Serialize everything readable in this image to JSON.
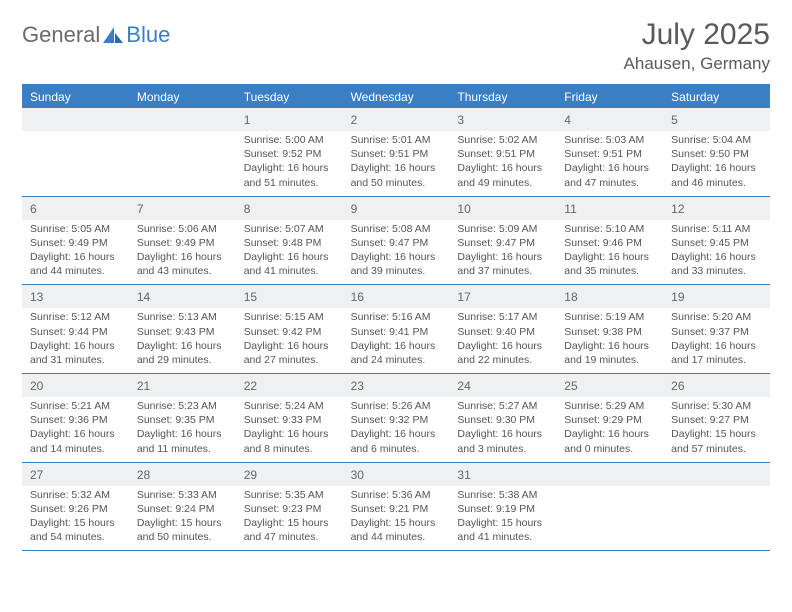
{
  "logo": {
    "text1": "General",
    "text2": "Blue"
  },
  "title": "July 2025",
  "location": "Ahausen, Germany",
  "weekdays": [
    "Sunday",
    "Monday",
    "Tuesday",
    "Wednesday",
    "Thursday",
    "Friday",
    "Saturday"
  ],
  "colors": {
    "accent": "#3a7fc4",
    "header_bg": "#3a7fc4",
    "daynum_bg": "#eef0f1",
    "text": "#555",
    "title_text": "#5a5a5a"
  },
  "calendar": {
    "start_weekday_index": 2,
    "days": [
      {
        "n": 1,
        "sunrise": "5:00 AM",
        "sunset": "9:52 PM",
        "daylight": "16 hours and 51 minutes."
      },
      {
        "n": 2,
        "sunrise": "5:01 AM",
        "sunset": "9:51 PM",
        "daylight": "16 hours and 50 minutes."
      },
      {
        "n": 3,
        "sunrise": "5:02 AM",
        "sunset": "9:51 PM",
        "daylight": "16 hours and 49 minutes."
      },
      {
        "n": 4,
        "sunrise": "5:03 AM",
        "sunset": "9:51 PM",
        "daylight": "16 hours and 47 minutes."
      },
      {
        "n": 5,
        "sunrise": "5:04 AM",
        "sunset": "9:50 PM",
        "daylight": "16 hours and 46 minutes."
      },
      {
        "n": 6,
        "sunrise": "5:05 AM",
        "sunset": "9:49 PM",
        "daylight": "16 hours and 44 minutes."
      },
      {
        "n": 7,
        "sunrise": "5:06 AM",
        "sunset": "9:49 PM",
        "daylight": "16 hours and 43 minutes."
      },
      {
        "n": 8,
        "sunrise": "5:07 AM",
        "sunset": "9:48 PM",
        "daylight": "16 hours and 41 minutes."
      },
      {
        "n": 9,
        "sunrise": "5:08 AM",
        "sunset": "9:47 PM",
        "daylight": "16 hours and 39 minutes."
      },
      {
        "n": 10,
        "sunrise": "5:09 AM",
        "sunset": "9:47 PM",
        "daylight": "16 hours and 37 minutes."
      },
      {
        "n": 11,
        "sunrise": "5:10 AM",
        "sunset": "9:46 PM",
        "daylight": "16 hours and 35 minutes."
      },
      {
        "n": 12,
        "sunrise": "5:11 AM",
        "sunset": "9:45 PM",
        "daylight": "16 hours and 33 minutes."
      },
      {
        "n": 13,
        "sunrise": "5:12 AM",
        "sunset": "9:44 PM",
        "daylight": "16 hours and 31 minutes."
      },
      {
        "n": 14,
        "sunrise": "5:13 AM",
        "sunset": "9:43 PM",
        "daylight": "16 hours and 29 minutes."
      },
      {
        "n": 15,
        "sunrise": "5:15 AM",
        "sunset": "9:42 PM",
        "daylight": "16 hours and 27 minutes."
      },
      {
        "n": 16,
        "sunrise": "5:16 AM",
        "sunset": "9:41 PM",
        "daylight": "16 hours and 24 minutes."
      },
      {
        "n": 17,
        "sunrise": "5:17 AM",
        "sunset": "9:40 PM",
        "daylight": "16 hours and 22 minutes."
      },
      {
        "n": 18,
        "sunrise": "5:19 AM",
        "sunset": "9:38 PM",
        "daylight": "16 hours and 19 minutes."
      },
      {
        "n": 19,
        "sunrise": "5:20 AM",
        "sunset": "9:37 PM",
        "daylight": "16 hours and 17 minutes."
      },
      {
        "n": 20,
        "sunrise": "5:21 AM",
        "sunset": "9:36 PM",
        "daylight": "16 hours and 14 minutes."
      },
      {
        "n": 21,
        "sunrise": "5:23 AM",
        "sunset": "9:35 PM",
        "daylight": "16 hours and 11 minutes."
      },
      {
        "n": 22,
        "sunrise": "5:24 AM",
        "sunset": "9:33 PM",
        "daylight": "16 hours and 8 minutes."
      },
      {
        "n": 23,
        "sunrise": "5:26 AM",
        "sunset": "9:32 PM",
        "daylight": "16 hours and 6 minutes."
      },
      {
        "n": 24,
        "sunrise": "5:27 AM",
        "sunset": "9:30 PM",
        "daylight": "16 hours and 3 minutes."
      },
      {
        "n": 25,
        "sunrise": "5:29 AM",
        "sunset": "9:29 PM",
        "daylight": "16 hours and 0 minutes."
      },
      {
        "n": 26,
        "sunrise": "5:30 AM",
        "sunset": "9:27 PM",
        "daylight": "15 hours and 57 minutes."
      },
      {
        "n": 27,
        "sunrise": "5:32 AM",
        "sunset": "9:26 PM",
        "daylight": "15 hours and 54 minutes."
      },
      {
        "n": 28,
        "sunrise": "5:33 AM",
        "sunset": "9:24 PM",
        "daylight": "15 hours and 50 minutes."
      },
      {
        "n": 29,
        "sunrise": "5:35 AM",
        "sunset": "9:23 PM",
        "daylight": "15 hours and 47 minutes."
      },
      {
        "n": 30,
        "sunrise": "5:36 AM",
        "sunset": "9:21 PM",
        "daylight": "15 hours and 44 minutes."
      },
      {
        "n": 31,
        "sunrise": "5:38 AM",
        "sunset": "9:19 PM",
        "daylight": "15 hours and 41 minutes."
      }
    ]
  },
  "labels": {
    "sunrise": "Sunrise: ",
    "sunset": "Sunset: ",
    "daylight": "Daylight: "
  }
}
